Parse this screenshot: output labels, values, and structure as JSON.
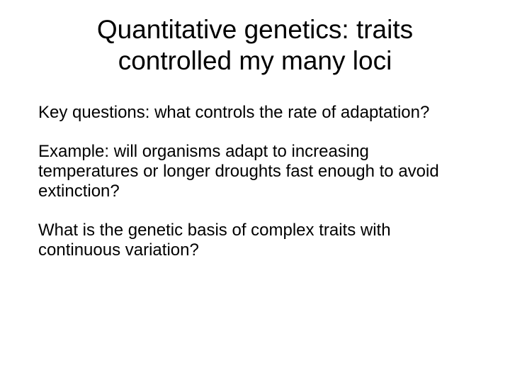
{
  "slide": {
    "title": "Quantitative genetics:  traits controlled my many loci",
    "paragraphs": [
      "Key questions:  what controls the rate of adaptation?",
      "Example:  will organisms adapt to increasing temperatures or longer droughts fast enough to avoid extinction?",
      "What is the genetic basis of complex traits with continuous variation?"
    ],
    "background_color": "#ffffff",
    "text_color": "#000000",
    "title_fontsize": 37,
    "body_fontsize": 24,
    "font_family": "Arial"
  }
}
